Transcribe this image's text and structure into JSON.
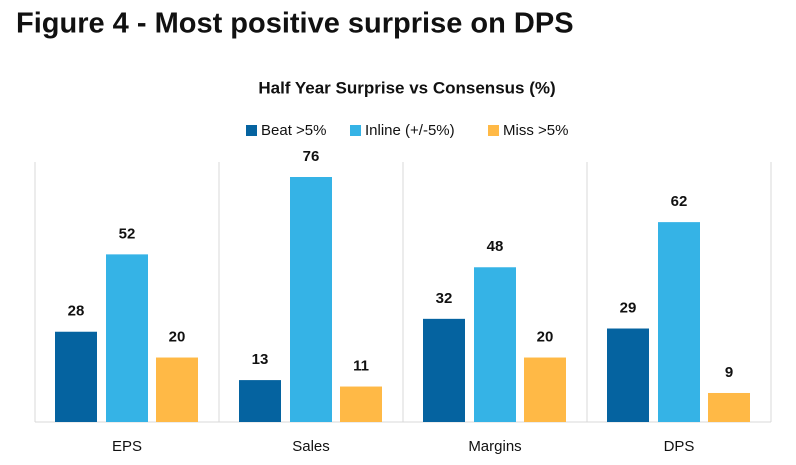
{
  "heading": "Figure 4 - Most positive surprise on DPS",
  "chart_data": {
    "type": "bar",
    "title": "Half Year Surprise vs Consensus (%)",
    "categories": [
      "EPS",
      "Sales",
      "Margins",
      "DPS"
    ],
    "series": [
      {
        "name": "Beat >5%",
        "color": "#0563a0",
        "values": [
          28,
          13,
          32,
          29
        ]
      },
      {
        "name": "Inline (+/-5%)",
        "color": "#35b3e6",
        "values": [
          52,
          76,
          48,
          62
        ]
      },
      {
        "name": "Miss >5%",
        "color": "#ffb946",
        "values": [
          20,
          11,
          20,
          9
        ]
      }
    ]
  }
}
